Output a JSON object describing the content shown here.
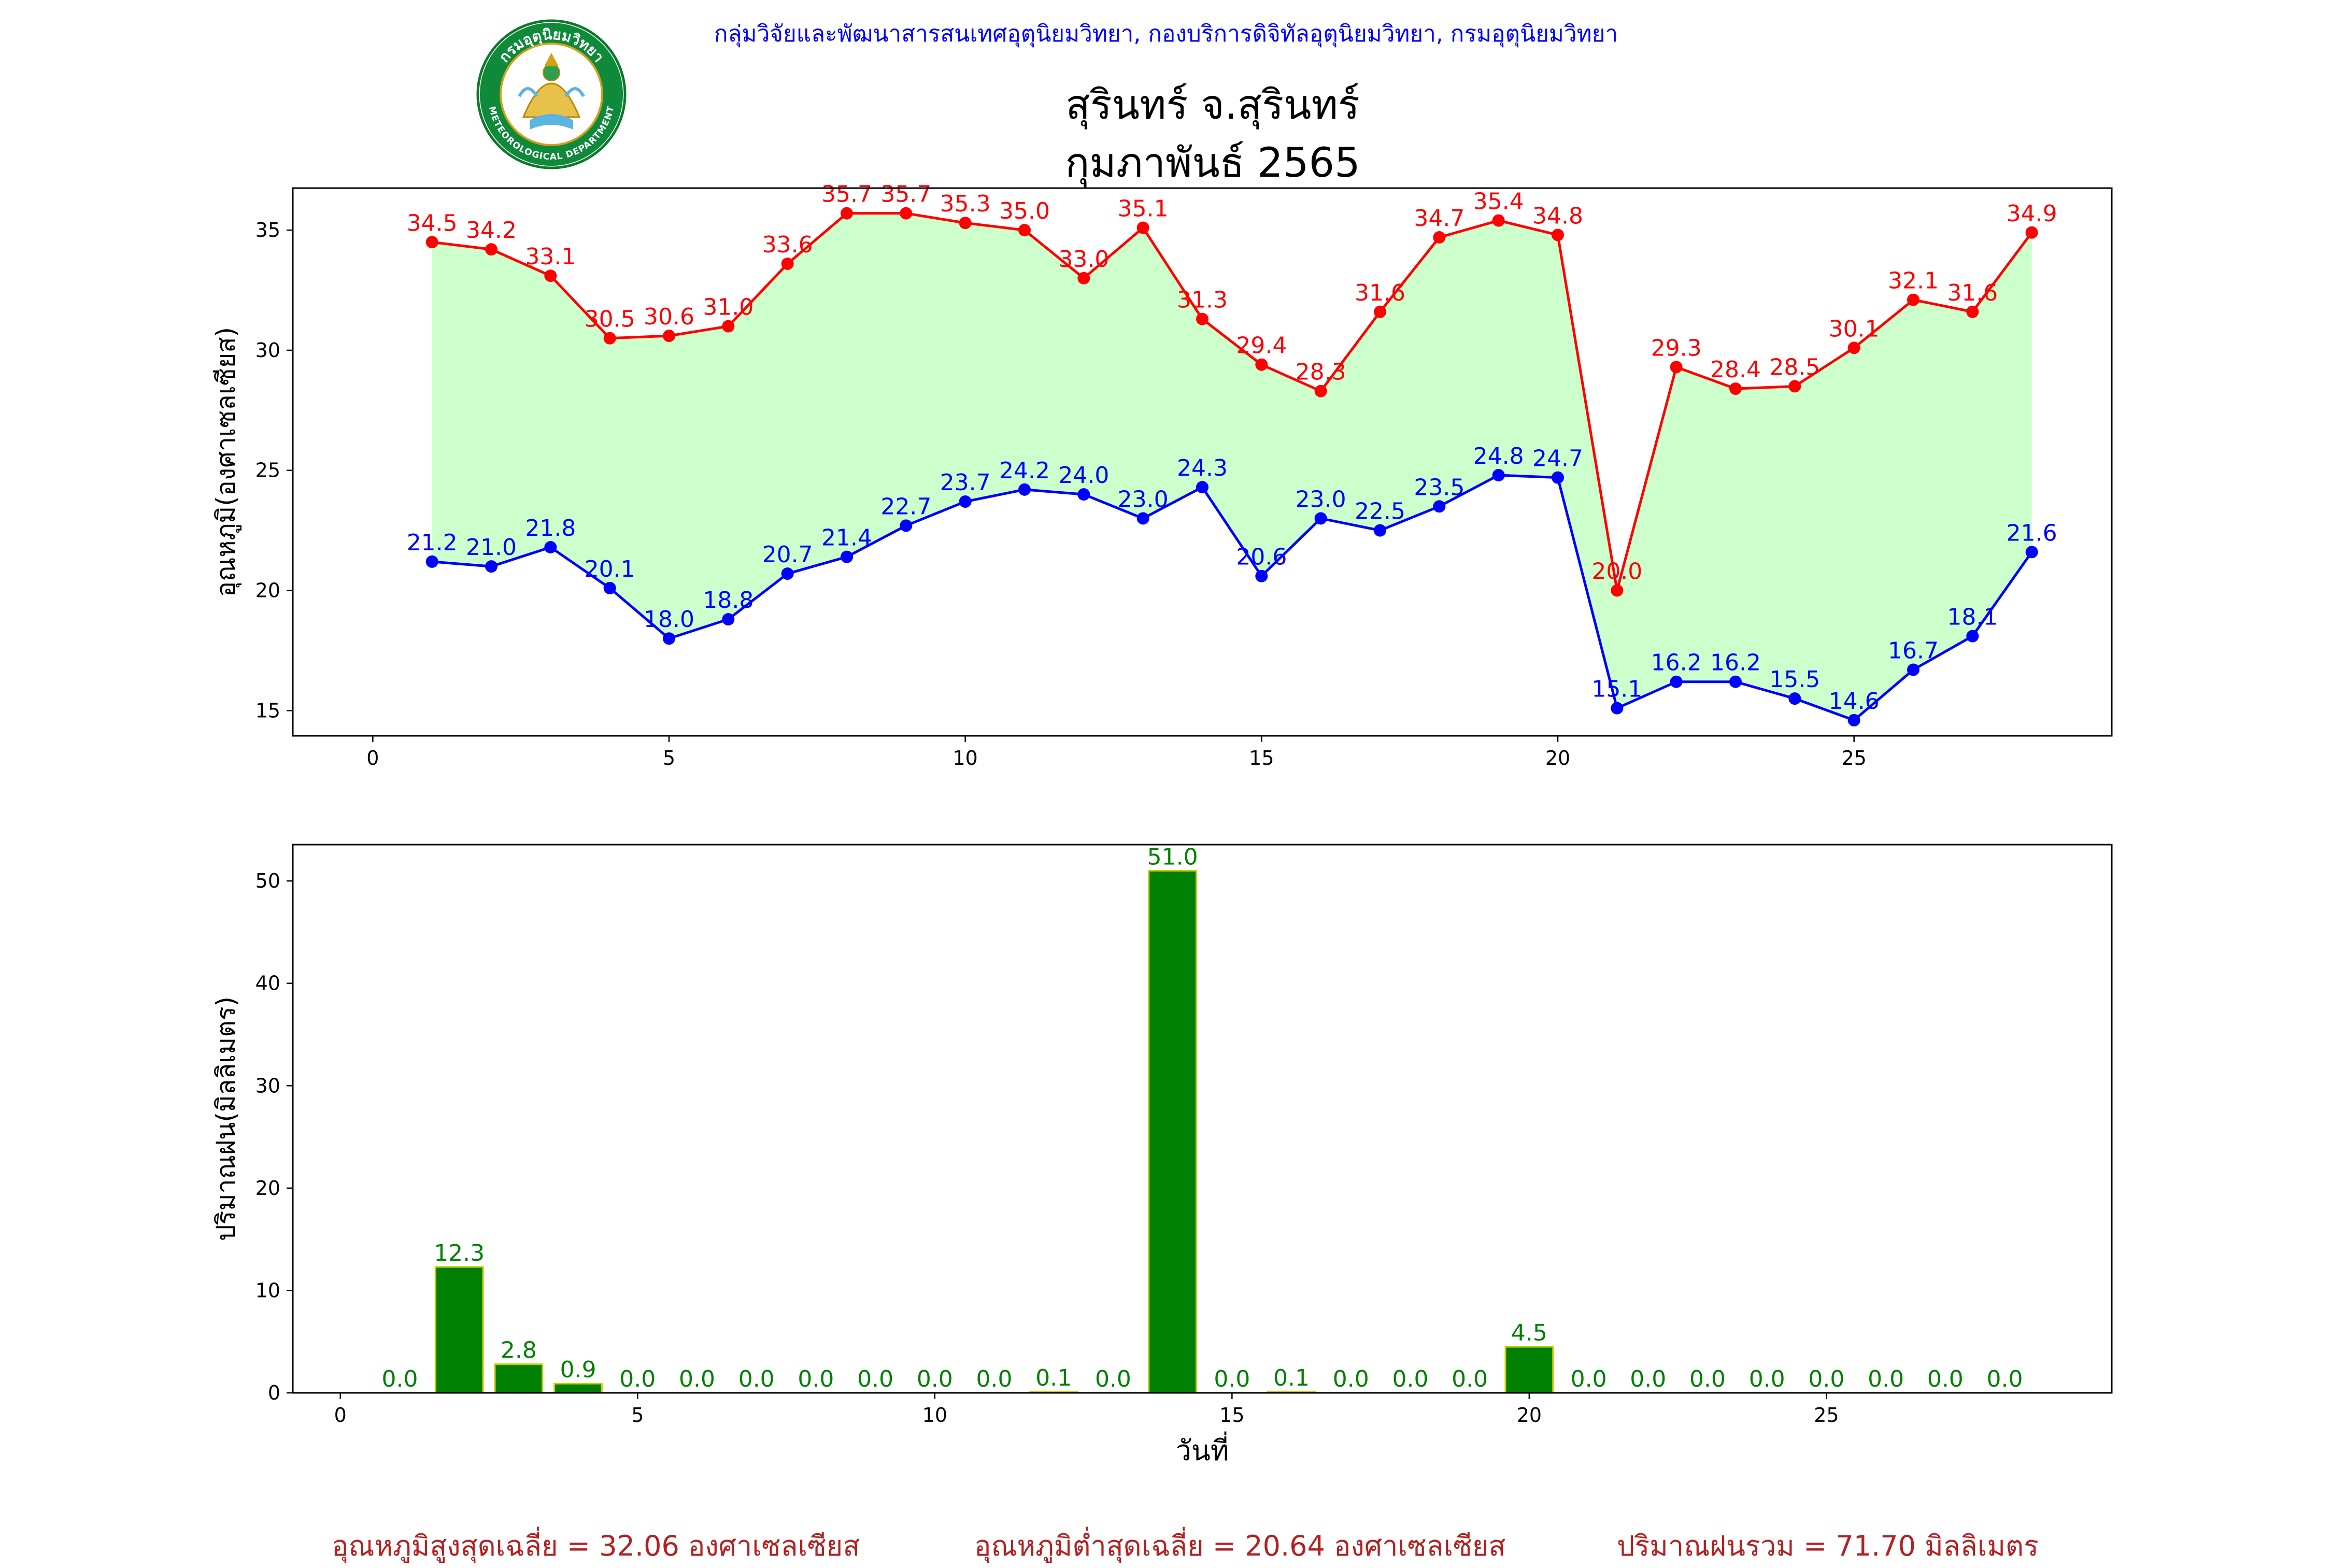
{
  "header": {
    "agency": "กลุ่มวิจัยและพัฒนาสารสนเทศอุตุนิยมวิทยา, กองบริการดิจิทัลอุตุนิยมวิทยา, กรมอุตุนิยมวิทยา",
    "title_line1": "สุรินทร์ จ.สุรินทร์",
    "title_line2": "กุมภาพันธ์ 2565",
    "emblem_text_top": "กรมอุตุนิยมวิทยา",
    "emblem_text_bottom": "METEOROLOGICAL DEPARTMENT"
  },
  "summary": {
    "avg_max": "อุณหภูมิสูงสุดเฉลี่ย = 32.06 องศาเซลเซียส",
    "avg_min": "อุณหภูมิต่ำสุดเฉลี่ย = 20.64 องศาเซลเซียส",
    "total_rain": "ปริมาณฝนรวม = 71.70 มิลลิเมตร"
  },
  "colors": {
    "max_line": "#ff0000",
    "min_line": "#0000ff",
    "fill_between": "#ccffcc",
    "bar_fill": "#008000",
    "bar_edge": "#cccc00",
    "summary_text": "#b22222",
    "agency_text": "#0000ff"
  },
  "chart_data": [
    {
      "type": "line",
      "ylabel": "อุณหภูมิ(องศาเซลเซียส)",
      "xlabel": "",
      "xlim": [
        -1.35,
        29.35
      ],
      "ylim": [
        13.95,
        36.75
      ],
      "xticks": [
        0,
        5,
        10,
        15,
        20,
        25
      ],
      "yticks": [
        15,
        20,
        25,
        30,
        35
      ],
      "fill_between_series": true,
      "grid": false,
      "x": [
        1,
        2,
        3,
        4,
        5,
        6,
        7,
        8,
        9,
        10,
        11,
        12,
        13,
        14,
        15,
        16,
        17,
        18,
        19,
        20,
        21,
        22,
        23,
        24,
        25,
        26,
        27,
        28
      ],
      "series": [
        {
          "key": "max",
          "values": [
            34.5,
            34.2,
            33.1,
            30.5,
            30.6,
            31.0,
            33.6,
            35.7,
            35.7,
            35.3,
            35.0,
            33.0,
            35.1,
            31.3,
            29.4,
            28.3,
            31.6,
            34.7,
            35.4,
            34.8,
            20.0,
            29.3,
            28.4,
            28.5,
            30.1,
            32.1,
            31.6,
            34.9
          ]
        },
        {
          "key": "min",
          "values": [
            21.2,
            21.0,
            21.8,
            20.1,
            18.0,
            18.8,
            20.7,
            21.4,
            22.7,
            23.7,
            24.2,
            24.0,
            23.0,
            24.3,
            20.6,
            23.0,
            22.5,
            23.5,
            24.8,
            24.7,
            15.1,
            16.2,
            16.2,
            15.5,
            14.6,
            16.7,
            18.1,
            21.6
          ]
        }
      ]
    },
    {
      "type": "bar",
      "ylabel": "ปริมาณฝน(มิลลิเมตร)",
      "xlabel": "วันที่",
      "xlim": [
        -0.8,
        29.8
      ],
      "ylim": [
        0,
        53.55
      ],
      "xticks": [
        0,
        5,
        10,
        15,
        20,
        25
      ],
      "yticks": [
        0,
        10,
        20,
        30,
        40,
        50
      ],
      "grid": false,
      "categories": [
        1,
        2,
        3,
        4,
        5,
        6,
        7,
        8,
        9,
        10,
        11,
        12,
        13,
        14,
        15,
        16,
        17,
        18,
        19,
        20,
        21,
        22,
        23,
        24,
        25,
        26,
        27,
        28
      ],
      "values": [
        0.0,
        12.3,
        2.8,
        0.9,
        0.0,
        0.0,
        0.0,
        0.0,
        0.0,
        0.0,
        0.0,
        0.1,
        0.0,
        51.0,
        0.0,
        0.1,
        0.0,
        0.0,
        0.0,
        4.5,
        0.0,
        0.0,
        0.0,
        0.0,
        0.0,
        0.0,
        0.0,
        0.0
      ]
    }
  ]
}
